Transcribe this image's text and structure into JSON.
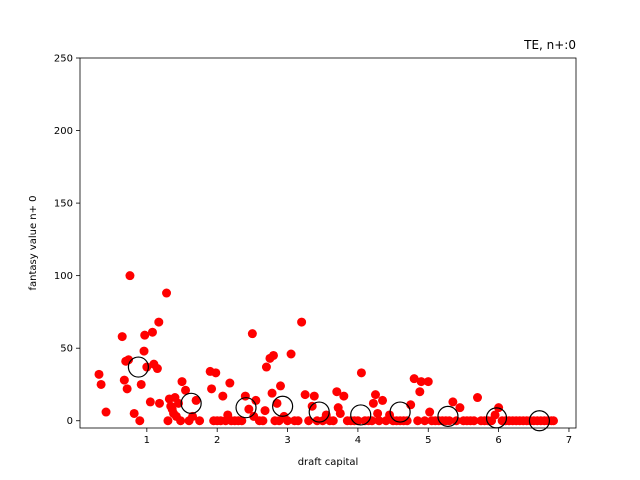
{
  "chart_data": {
    "type": "scatter",
    "title": "TE, n+:0",
    "xlabel": "draft capital",
    "ylabel": "fantasy value n+ 0",
    "xlim": [
      0.05,
      7.1
    ],
    "ylim": [
      -5,
      250
    ],
    "xticks": [
      1,
      2,
      3,
      4,
      5,
      6,
      7
    ],
    "yticks": [
      0,
      50,
      100,
      150,
      200,
      250
    ],
    "grid": false,
    "series": [
      {
        "marker": "filled-circle",
        "color": "#ff0000",
        "points": [
          [
            0.32,
            32
          ],
          [
            0.35,
            25
          ],
          [
            0.42,
            6
          ],
          [
            0.65,
            58
          ],
          [
            0.68,
            28
          ],
          [
            0.7,
            41
          ],
          [
            0.72,
            22
          ],
          [
            0.74,
            42
          ],
          [
            0.76,
            100
          ],
          [
            0.82,
            5
          ],
          [
            0.9,
            0
          ],
          [
            0.92,
            25
          ],
          [
            0.96,
            48
          ],
          [
            0.97,
            59
          ],
          [
            1.0,
            37
          ],
          [
            1.05,
            13
          ],
          [
            1.08,
            61
          ],
          [
            1.1,
            39
          ],
          [
            1.15,
            36
          ],
          [
            1.17,
            68
          ],
          [
            1.18,
            12
          ],
          [
            1.28,
            88
          ],
          [
            1.3,
            0
          ],
          [
            1.32,
            15
          ],
          [
            1.34,
            10
          ],
          [
            1.36,
            8
          ],
          [
            1.38,
            5
          ],
          [
            1.4,
            16
          ],
          [
            1.42,
            3
          ],
          [
            1.45,
            12
          ],
          [
            1.48,
            0
          ],
          [
            1.5,
            27
          ],
          [
            1.55,
            21
          ],
          [
            1.6,
            0
          ],
          [
            1.65,
            3
          ],
          [
            1.7,
            14
          ],
          [
            1.75,
            0
          ],
          [
            1.9,
            34
          ],
          [
            1.92,
            22
          ],
          [
            1.95,
            0
          ],
          [
            1.98,
            33
          ],
          [
            2.0,
            0
          ],
          [
            2.05,
            0
          ],
          [
            2.08,
            17
          ],
          [
            2.12,
            0
          ],
          [
            2.15,
            4
          ],
          [
            2.18,
            26
          ],
          [
            2.2,
            0
          ],
          [
            2.25,
            0
          ],
          [
            2.3,
            0
          ],
          [
            2.35,
            0
          ],
          [
            2.4,
            17
          ],
          [
            2.45,
            8
          ],
          [
            2.5,
            60
          ],
          [
            2.52,
            3
          ],
          [
            2.55,
            14
          ],
          [
            2.6,
            0
          ],
          [
            2.65,
            0
          ],
          [
            2.68,
            7
          ],
          [
            2.7,
            37
          ],
          [
            2.75,
            43
          ],
          [
            2.78,
            19
          ],
          [
            2.8,
            45
          ],
          [
            2.82,
            0
          ],
          [
            2.85,
            12
          ],
          [
            2.88,
            0
          ],
          [
            2.9,
            24
          ],
          [
            2.95,
            3
          ],
          [
            3.0,
            0
          ],
          [
            3.05,
            46
          ],
          [
            3.1,
            0
          ],
          [
            3.15,
            0
          ],
          [
            3.2,
            68
          ],
          [
            3.25,
            18
          ],
          [
            3.3,
            0
          ],
          [
            3.35,
            10
          ],
          [
            3.38,
            17
          ],
          [
            3.42,
            0
          ],
          [
            3.5,
            0
          ],
          [
            3.55,
            4
          ],
          [
            3.6,
            0
          ],
          [
            3.65,
            0
          ],
          [
            3.7,
            20
          ],
          [
            3.72,
            9
          ],
          [
            3.75,
            5
          ],
          [
            3.8,
            17
          ],
          [
            3.85,
            0
          ],
          [
            3.9,
            0
          ],
          [
            3.95,
            0
          ],
          [
            4.0,
            0
          ],
          [
            4.05,
            33
          ],
          [
            4.1,
            0
          ],
          [
            4.15,
            0
          ],
          [
            4.2,
            0
          ],
          [
            4.22,
            12
          ],
          [
            4.25,
            18
          ],
          [
            4.28,
            5
          ],
          [
            4.3,
            0
          ],
          [
            4.35,
            14
          ],
          [
            4.4,
            0
          ],
          [
            4.45,
            4
          ],
          [
            4.5,
            0
          ],
          [
            4.55,
            0
          ],
          [
            4.6,
            0
          ],
          [
            4.65,
            0
          ],
          [
            4.7,
            0
          ],
          [
            4.75,
            11
          ],
          [
            4.8,
            29
          ],
          [
            4.85,
            0
          ],
          [
            4.88,
            20
          ],
          [
            4.9,
            27
          ],
          [
            4.95,
            0
          ],
          [
            5.0,
            27
          ],
          [
            5.02,
            6
          ],
          [
            5.05,
            0
          ],
          [
            5.1,
            0
          ],
          [
            5.15,
            0
          ],
          [
            5.2,
            0
          ],
          [
            5.25,
            0
          ],
          [
            5.3,
            0
          ],
          [
            5.35,
            13
          ],
          [
            5.4,
            0
          ],
          [
            5.45,
            9
          ],
          [
            5.5,
            0
          ],
          [
            5.55,
            0
          ],
          [
            5.6,
            0
          ],
          [
            5.65,
            0
          ],
          [
            5.7,
            16
          ],
          [
            5.75,
            0
          ],
          [
            5.8,
            0
          ],
          [
            5.85,
            0
          ],
          [
            5.9,
            0
          ],
          [
            5.95,
            4
          ],
          [
            6.0,
            9
          ],
          [
            6.05,
            0
          ],
          [
            6.1,
            0
          ],
          [
            6.15,
            0
          ],
          [
            6.2,
            0
          ],
          [
            6.25,
            0
          ],
          [
            6.3,
            0
          ],
          [
            6.35,
            0
          ],
          [
            6.4,
            0
          ],
          [
            6.45,
            0
          ],
          [
            6.5,
            0
          ],
          [
            6.55,
            0
          ],
          [
            6.6,
            0
          ],
          [
            6.65,
            0
          ],
          [
            6.7,
            0
          ],
          [
            6.75,
            0
          ],
          [
            6.78,
            0
          ]
        ]
      },
      {
        "marker": "open-circle",
        "color": "#000000",
        "points": [
          [
            0.88,
            37
          ],
          [
            1.63,
            12
          ],
          [
            2.41,
            9
          ],
          [
            2.93,
            10
          ],
          [
            3.45,
            6
          ],
          [
            4.04,
            4
          ],
          [
            4.6,
            6
          ],
          [
            5.28,
            3
          ],
          [
            5.97,
            2
          ],
          [
            6.58,
            0
          ]
        ]
      }
    ]
  }
}
